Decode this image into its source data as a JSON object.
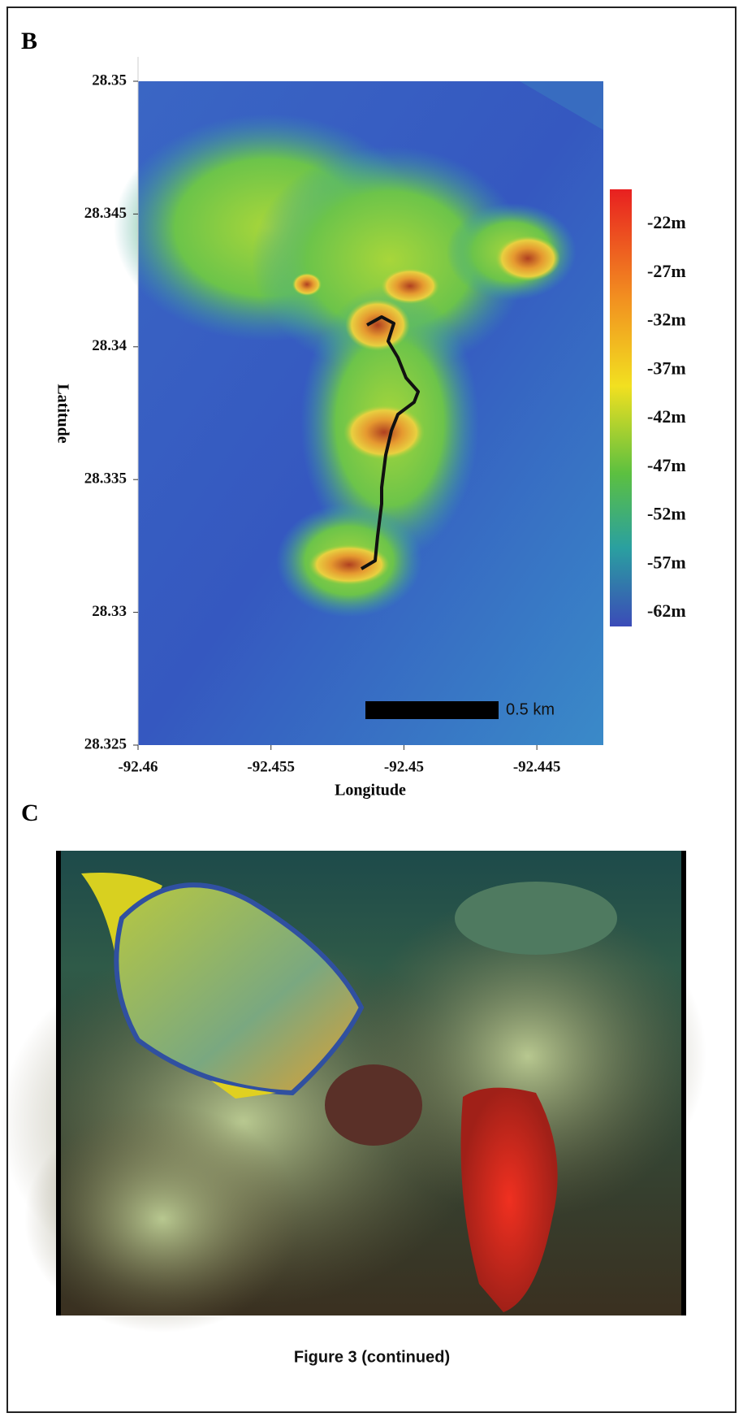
{
  "panels": [
    {
      "label": "B",
      "map": {
        "xlabel": "Longitude",
        "ylabel": "Latitude",
        "xlim": [
          -92.46,
          -92.4425
        ],
        "ylim": [
          28.325,
          28.35
        ],
        "xticks": [
          -92.46,
          -92.455,
          -92.45,
          -92.445
        ],
        "yticks": [
          28.35,
          28.345,
          28.34,
          28.335,
          28.33,
          28.325
        ],
        "colorbar_labels": [
          "-22m",
          "-27m",
          "-32m",
          "-37m",
          "-42m",
          "-47m",
          "-52m",
          "-57m",
          "-62m"
        ],
        "scale_bar": "0.5 km"
      }
    },
    {
      "label": "C"
    }
  ],
  "caption": "Figure 3 (continued)"
}
